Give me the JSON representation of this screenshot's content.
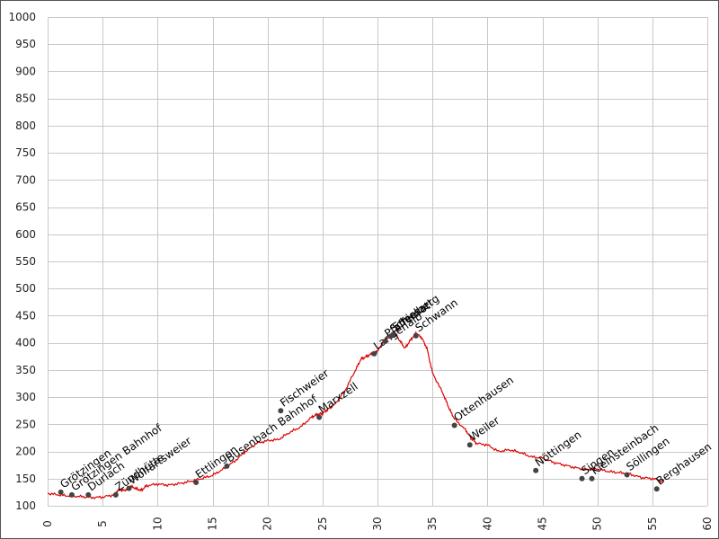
{
  "chart_data": {
    "type": "line",
    "title": "",
    "xlabel": "",
    "ylabel": "",
    "xlim": [
      0,
      60
    ],
    "ylim": [
      100,
      1000
    ],
    "x_ticks": [
      0,
      5,
      10,
      15,
      20,
      25,
      30,
      35,
      40,
      45,
      50,
      55,
      60
    ],
    "y_ticks": [
      100,
      150,
      200,
      250,
      300,
      350,
      400,
      450,
      500,
      550,
      600,
      650,
      700,
      750,
      800,
      850,
      900,
      950,
      1000
    ],
    "grid": true,
    "colors": {
      "line": "#dd0000",
      "grid": "#c8c8c8",
      "point": "#444444"
    },
    "series": [
      {
        "x": [
          0,
          1,
          2,
          3,
          4,
          5,
          6,
          6.5,
          7,
          7.5,
          8,
          8.5,
          9,
          10,
          11,
          12,
          13,
          14,
          15,
          16,
          17,
          18,
          19,
          20,
          21,
          22,
          23,
          24,
          24.5,
          25,
          25.5,
          26,
          27,
          28,
          28.5,
          29,
          29.5,
          30,
          30.5,
          31,
          31.5,
          32,
          32.5,
          33,
          33.5,
          34,
          34.5,
          35,
          36,
          36.5,
          37,
          38,
          38.5,
          39,
          40,
          41,
          42,
          43,
          44,
          45,
          46,
          47,
          48,
          49,
          50,
          51,
          52,
          53,
          54,
          55,
          56
        ],
        "y": [
          123,
          120,
          118,
          117,
          115,
          116,
          120,
          130,
          128,
          136,
          132,
          128,
          137,
          140,
          138,
          141,
          145,
          150,
          156,
          168,
          182,
          200,
          215,
          220,
          222,
          235,
          245,
          263,
          268,
          270,
          278,
          285,
          310,
          350,
          370,
          375,
          380,
          385,
          400,
          410,
          420,
          405,
          390,
          405,
          418,
          410,
          390,
          345,
          305,
          280,
          260,
          240,
          225,
          215,
          212,
          200,
          203,
          198,
          190,
          188,
          180,
          175,
          170,
          167,
          168,
          163,
          161,
          158,
          152,
          150,
          145
        ]
      }
    ],
    "points": [
      {
        "name": "Grötzingen",
        "x": 1.2,
        "y": 125
      },
      {
        "name": "Grötzingen Bahnhof",
        "x": 2.2,
        "y": 120
      },
      {
        "name": "Durlach",
        "x": 3.7,
        "y": 120
      },
      {
        "name": "Zündhütte",
        "x": 6.2,
        "y": 120
      },
      {
        "name": "Wolfartsweier",
        "x": 7.4,
        "y": 132
      },
      {
        "name": "Ettlingen",
        "x": 13.5,
        "y": 143
      },
      {
        "name": "Busenbach Bahnhof",
        "x": 16.3,
        "y": 173
      },
      {
        "name": "Fischweier",
        "x": 21.2,
        "y": 275
      },
      {
        "name": "Marxzell",
        "x": 24.7,
        "y": 263
      },
      {
        "name": "Langenalb",
        "x": 29.7,
        "y": 380
      },
      {
        "name": "Pfaffenrot",
        "x": 30.7,
        "y": 403
      },
      {
        "name": "Schielberg",
        "x": 31.2,
        "y": 412
      },
      {
        "name": "Spessart",
        "x": 31.4,
        "y": 415
      },
      {
        "name": "Schwann",
        "x": 33.5,
        "y": 413
      },
      {
        "name": "Ottenhausen",
        "x": 37.0,
        "y": 248
      },
      {
        "name": "Weiler",
        "x": 38.4,
        "y": 212
      },
      {
        "name": "Nöttingen",
        "x": 44.4,
        "y": 165
      },
      {
        "name": "Singen",
        "x": 48.6,
        "y": 150
      },
      {
        "name": "Kleinsteinbach",
        "x": 49.5,
        "y": 150
      },
      {
        "name": "Söllingen",
        "x": 52.7,
        "y": 157
      },
      {
        "name": "Berghausen",
        "x": 55.4,
        "y": 131
      }
    ]
  }
}
